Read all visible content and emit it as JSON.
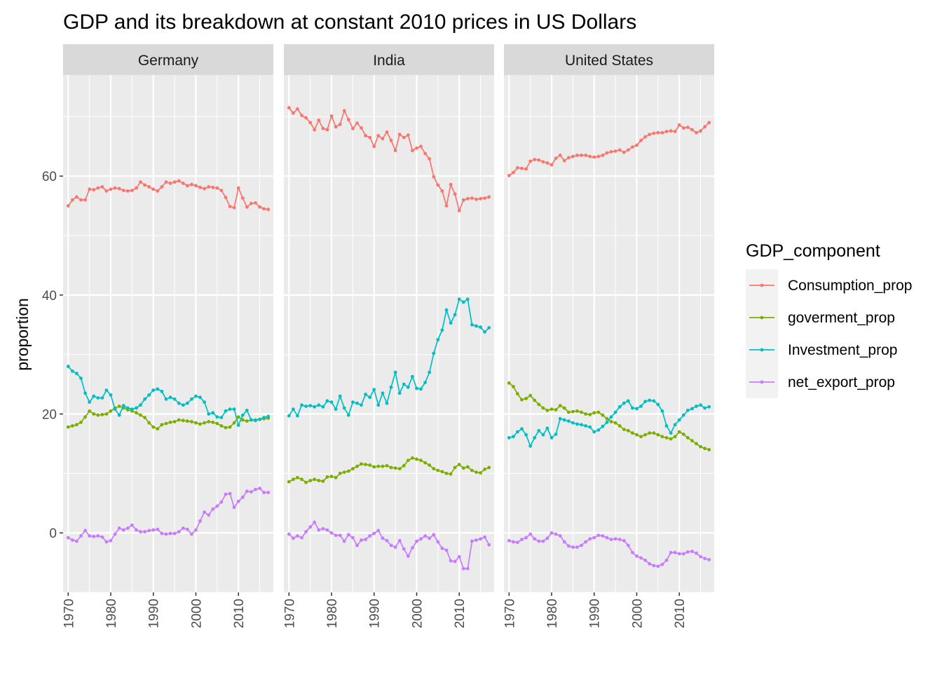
{
  "chart_data": {
    "type": "line",
    "title": "GDP and its breakdown at constant 2010 prices in US Dollars",
    "xlabel": "",
    "ylabel": "proportion",
    "xlim": [
      1970,
      2017
    ],
    "ylim": [
      -10,
      77
    ],
    "x_ticks": [
      "1970",
      "1980",
      "1990",
      "2000",
      "2010"
    ],
    "y_ticks": [
      "0",
      "20",
      "40",
      "60"
    ],
    "grid": true,
    "legend": {
      "title": "GDP_component",
      "position": "right",
      "entries": [
        "Consumption_prop",
        "goverment_prop",
        "Investment_prop",
        "net_export_prop"
      ]
    },
    "colors": {
      "Consumption_prop": "#F8766D",
      "goverment_prop": "#7CAE00",
      "Investment_prop": "#00BFC4",
      "net_export_prop": "#C77CFF"
    },
    "panels": [
      {
        "name": "Germany",
        "series": [
          {
            "name": "Consumption_prop",
            "values": [
              55.0,
              56.0,
              56.5,
              56.0,
              56.0,
              57.8,
              57.7,
              58.0,
              58.2,
              57.5,
              57.8,
              58.0,
              57.9,
              57.6,
              57.5,
              57.6,
              58.0,
              59.0,
              58.5,
              58.2,
              57.8,
              57.5,
              58.2,
              59.0,
              58.8,
              59.0,
              59.2,
              58.8,
              58.4,
              58.6,
              58.4,
              58.1,
              57.9,
              58.2,
              58.1,
              58.0,
              57.6,
              56.4,
              54.9,
              54.7,
              58.0,
              56.3,
              54.8,
              55.4,
              55.5,
              54.8,
              54.5,
              54.4
            ]
          },
          {
            "name": "goverment_prop",
            "values": [
              17.8,
              18.0,
              18.2,
              18.6,
              19.5,
              20.5,
              20.0,
              19.8,
              19.9,
              20.0,
              20.5,
              21.0,
              21.3,
              21.0,
              20.7,
              20.5,
              20.2,
              19.8,
              19.4,
              18.5,
              17.8,
              17.5,
              18.2,
              18.4,
              18.6,
              18.7,
              19.0,
              18.9,
              18.8,
              18.7,
              18.5,
              18.3,
              18.5,
              18.7,
              18.6,
              18.4,
              18.0,
              17.7,
              17.8,
              18.5,
              19.5,
              19.0,
              18.8,
              19.0,
              19.0,
              19.1,
              19.2,
              19.3
            ]
          },
          {
            "name": "Investment_prop",
            "values": [
              28.0,
              27.2,
              26.8,
              26.0,
              23.5,
              22.0,
              23.0,
              22.7,
              22.7,
              24.0,
              23.2,
              20.8,
              19.8,
              21.4,
              21.0,
              20.8,
              21.0,
              21.5,
              22.5,
              23.2,
              24.0,
              24.2,
              23.8,
              22.5,
              22.8,
              22.5,
              21.8,
              21.5,
              21.8,
              22.5,
              23.0,
              22.8,
              22.0,
              20.0,
              20.2,
              19.5,
              19.4,
              20.5,
              20.8,
              20.8,
              18.1,
              19.8,
              20.6,
              19.0,
              18.9,
              19.1,
              19.4,
              19.6
            ]
          },
          {
            "name": "net_export_prop",
            "values": [
              -0.8,
              -1.2,
              -1.4,
              -0.5,
              0.4,
              -0.5,
              -0.6,
              -0.5,
              -0.7,
              -1.5,
              -1.3,
              -0.2,
              0.8,
              0.5,
              0.8,
              1.3,
              0.5,
              0.2,
              0.2,
              0.4,
              0.5,
              0.6,
              -0.1,
              -0.2,
              -0.1,
              -0.1,
              0.2,
              0.8,
              0.6,
              -0.2,
              0.5,
              2.0,
              3.5,
              3.0,
              4.0,
              4.5,
              5.2,
              6.5,
              6.6,
              4.3,
              5.3,
              6.0,
              7.0,
              6.9,
              7.3,
              7.5,
              6.8,
              6.8
            ]
          }
        ]
      },
      {
        "name": "India",
        "series": [
          {
            "name": "Consumption_prop",
            "values": [
              71.5,
              70.6,
              71.3,
              70.2,
              69.8,
              69.0,
              67.8,
              69.4,
              68.0,
              67.8,
              70.1,
              68.3,
              68.7,
              71.0,
              69.5,
              68.0,
              68.9,
              68.1,
              66.8,
              66.5,
              65.0,
              66.8,
              66.3,
              67.4,
              66.0,
              64.3,
              67.0,
              66.5,
              66.9,
              64.3,
              64.7,
              65.0,
              63.8,
              62.9,
              59.9,
              58.5,
              57.5,
              55.0,
              58.6,
              57.0,
              54.2,
              56.0,
              56.2,
              56.3,
              56.1,
              56.2,
              56.3,
              56.5
            ]
          },
          {
            "name": "goverment_prop",
            "values": [
              8.6,
              9.0,
              9.3,
              9.0,
              8.5,
              8.8,
              9.0,
              8.8,
              8.7,
              9.4,
              9.5,
              9.3,
              10.0,
              10.2,
              10.4,
              10.8,
              11.2,
              11.6,
              11.5,
              11.4,
              11.1,
              11.2,
              11.2,
              11.3,
              11.0,
              10.9,
              10.8,
              11.3,
              12.2,
              12.6,
              12.4,
              12.2,
              11.8,
              11.4,
              10.8,
              10.5,
              10.3,
              10.0,
              9.9,
              11.0,
              11.5,
              10.9,
              11.1,
              10.5,
              10.2,
              10.1,
              10.7,
              11.0
            ]
          },
          {
            "name": "Investment_prop",
            "values": [
              19.7,
              20.8,
              19.7,
              21.5,
              21.3,
              21.4,
              21.2,
              21.5,
              21.2,
              22.2,
              22.0,
              20.8,
              23.0,
              21.0,
              19.8,
              22.0,
              21.8,
              21.5,
              23.3,
              22.8,
              24.1,
              21.5,
              23.5,
              21.8,
              24.5,
              27.0,
              23.5,
              25.0,
              24.5,
              26.3,
              24.3,
              24.2,
              25.3,
              27.0,
              30.2,
              32.5,
              34.1,
              37.5,
              35.3,
              36.7,
              39.3,
              38.8,
              39.3,
              35.0,
              34.8,
              34.6,
              33.8,
              34.5
            ]
          },
          {
            "name": "net_export_prop",
            "values": [
              -0.2,
              -0.9,
              -0.5,
              -0.8,
              0.2,
              1.0,
              1.8,
              0.5,
              0.7,
              0.5,
              0.0,
              -0.4,
              -0.4,
              -1.4,
              -0.3,
              -0.8,
              -2.1,
              -1.2,
              -1.1,
              -0.5,
              -0.1,
              0.4,
              -0.9,
              -1.3,
              -2.1,
              -2.4,
              -1.3,
              -2.7,
              -3.9,
              -2.5,
              -1.4,
              -1.0,
              -0.5,
              -0.9,
              -0.3,
              -1.5,
              -2.6,
              -2.9,
              -4.7,
              -4.8,
              -4.0,
              -6.0,
              -6.0,
              -1.4,
              -1.2,
              -1.0,
              -0.7,
              -2.0
            ]
          }
        ]
      },
      {
        "name": "United States",
        "series": [
          {
            "name": "Consumption_prop",
            "values": [
              60.1,
              60.6,
              61.4,
              61.3,
              61.2,
              62.5,
              62.8,
              62.7,
              62.4,
              62.2,
              61.9,
              63.0,
              63.5,
              62.6,
              63.1,
              63.3,
              63.5,
              63.5,
              63.5,
              63.3,
              63.2,
              63.3,
              63.5,
              63.9,
              64.1,
              64.2,
              64.4,
              64.0,
              64.4,
              64.9,
              65.2,
              66.0,
              66.6,
              67.0,
              67.2,
              67.3,
              67.3,
              67.5,
              67.6,
              67.5,
              68.6,
              68.1,
              68.2,
              67.8,
              67.3,
              67.6,
              68.3,
              69.0
            ]
          },
          {
            "name": "goverment_prop",
            "values": [
              25.2,
              24.6,
              23.4,
              22.4,
              22.6,
              23.1,
              22.3,
              21.6,
              21.0,
              20.6,
              20.8,
              20.7,
              21.4,
              21.0,
              20.3,
              20.4,
              20.5,
              20.3,
              20.0,
              19.9,
              20.2,
              20.3,
              19.8,
              19.2,
              18.7,
              18.5,
              18.0,
              17.4,
              17.2,
              16.8,
              16.5,
              16.2,
              16.5,
              16.8,
              16.8,
              16.5,
              16.2,
              16.0,
              15.8,
              16.2,
              17.0,
              16.6,
              16.0,
              15.5,
              15.0,
              14.5,
              14.2,
              14.0
            ]
          },
          {
            "name": "Investment_prop",
            "values": [
              16.0,
              16.2,
              17.0,
              17.5,
              16.5,
              14.6,
              16.0,
              17.2,
              16.5,
              17.6,
              16.0,
              16.6,
              19.2,
              19.0,
              18.8,
              18.5,
              18.3,
              18.2,
              18.0,
              17.8,
              17.0,
              17.3,
              17.9,
              18.6,
              19.5,
              20.3,
              21.2,
              21.8,
              22.2,
              21.0,
              20.9,
              21.3,
              22.1,
              22.3,
              22.2,
              21.6,
              20.5,
              18.0,
              16.8,
              18.2,
              19.0,
              19.8,
              20.6,
              20.9,
              21.3,
              21.5,
              21.0,
              21.2
            ]
          },
          {
            "name": "net_export_prop",
            "values": [
              -1.3,
              -1.5,
              -1.6,
              -1.1,
              -0.8,
              -0.2,
              -1.0,
              -1.4,
              -1.4,
              -0.9,
              0.0,
              -0.2,
              -0.5,
              -1.5,
              -2.2,
              -2.4,
              -2.4,
              -2.1,
              -1.5,
              -1.0,
              -0.8,
              -0.4,
              -0.5,
              -0.8,
              -1.1,
              -1.0,
              -1.1,
              -1.3,
              -2.1,
              -3.3,
              -3.9,
              -4.2,
              -4.6,
              -5.2,
              -5.5,
              -5.6,
              -5.3,
              -4.6,
              -3.3,
              -3.3,
              -3.5,
              -3.5,
              -3.2,
              -3.1,
              -3.4,
              -4.0,
              -4.3,
              -4.5
            ]
          }
        ]
      }
    ]
  }
}
